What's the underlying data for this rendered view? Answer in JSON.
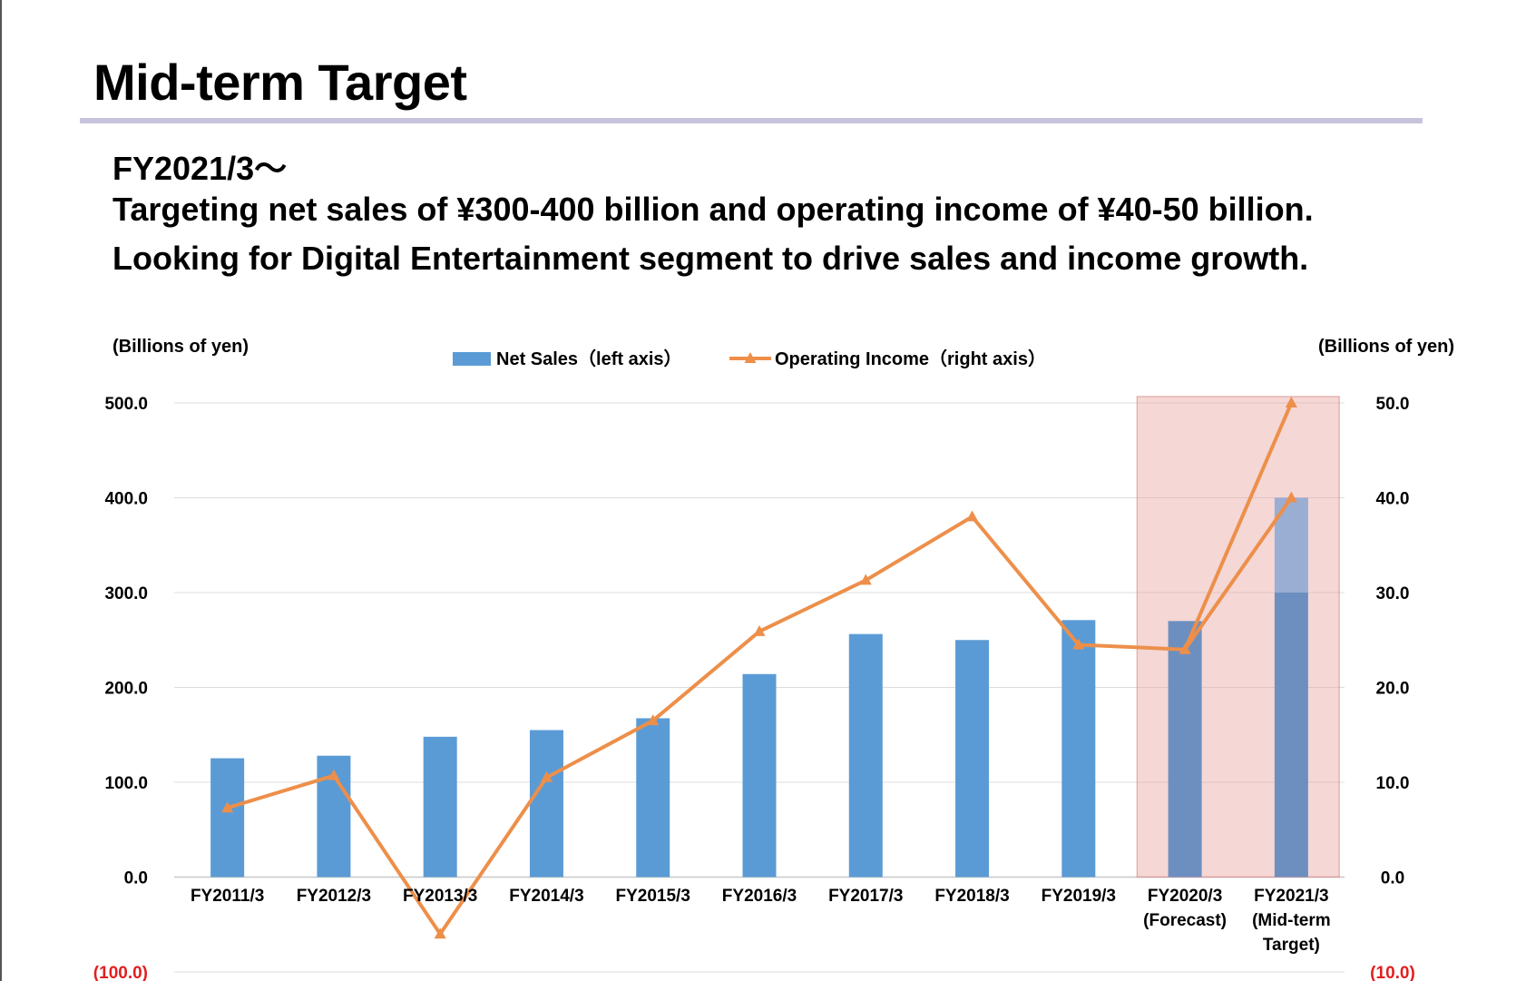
{
  "slide": {
    "title": "Mid-term Target",
    "subtitle_lines": [
      "FY2021/3～",
      "Targeting net sales of ¥300-400 billion and operating income of ¥40-50 billion.",
      "Looking for Digital Entertainment segment to drive sales and income growth."
    ]
  },
  "chart_data": {
    "type": "bar",
    "left_axis": {
      "unit_label": "(Billions of yen)",
      "ylim": [
        -100,
        500
      ],
      "ticks": [
        "500.0",
        "400.0",
        "300.0",
        "200.0",
        "100.0",
        "0.0",
        "(100.0)"
      ]
    },
    "right_axis": {
      "unit_label": "(Billions of yen)",
      "ylim": [
        -10,
        50
      ],
      "ticks": [
        "50.0",
        "40.0",
        "30.0",
        "20.0",
        "10.0",
        "0.0",
        "(10.0)"
      ]
    },
    "categories": [
      [
        "FY2011/3"
      ],
      [
        "FY2012/3"
      ],
      [
        "FY2013/3"
      ],
      [
        "FY2014/3"
      ],
      [
        "FY2015/3"
      ],
      [
        "FY2016/3"
      ],
      [
        "FY2017/3"
      ],
      [
        "FY2018/3"
      ],
      [
        "FY2019/3"
      ],
      [
        "FY2020/3",
        "(Forecast)"
      ],
      [
        "FY2021/3",
        "(Mid-term",
        "Target)"
      ]
    ],
    "series": [
      {
        "name": "Net Sales（left axis）",
        "type": "bar",
        "axis": "left",
        "color": "#5b9bd5",
        "values": [
          125.3,
          128.0,
          148.0,
          155.0,
          167.5,
          214.1,
          256.3,
          250.0,
          271.0,
          270.0,
          300.0
        ],
        "target_range_last": [
          300,
          400
        ]
      },
      {
        "name": "Operating Income（right axis）",
        "type": "line",
        "axis": "right",
        "color": "#ed8f4a",
        "values": [
          7.3,
          10.7,
          -6.0,
          10.5,
          16.5,
          25.9,
          31.3,
          38.0,
          24.5,
          24.0,
          50.0
        ],
        "target_range_last": [
          40,
          50
        ]
      }
    ],
    "highlight_categories": [
      "FY2020/3",
      "FY2021/3"
    ],
    "highlight_color": "#e8a09b",
    "grid": true,
    "legend_position": "top-center",
    "negative_tick_color": "#e02020"
  }
}
